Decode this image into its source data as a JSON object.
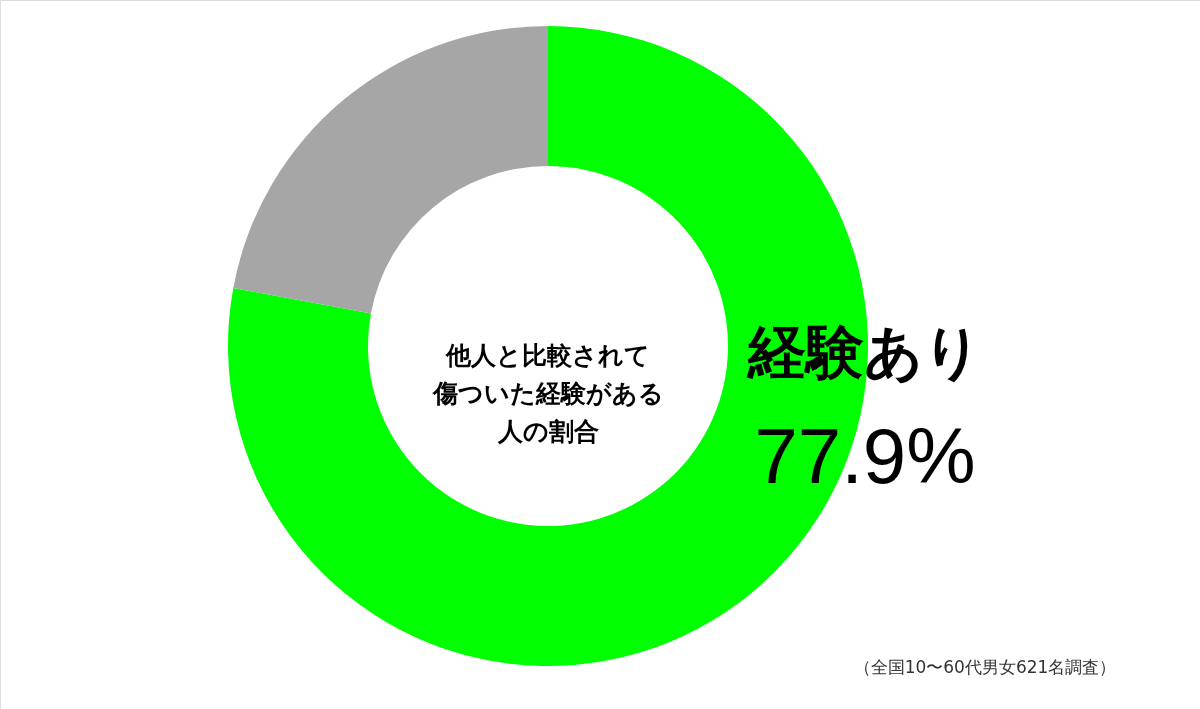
{
  "chart_data": {
    "type": "donut",
    "title": "他人と比較されて傷ついた経験がある人の割合",
    "categories": [
      "経験あり",
      null
    ],
    "values": [
      77.9,
      22.1
    ],
    "colors": [
      "#00ff00",
      "#a6a6a6"
    ],
    "value_labels": [
      "77.9%",
      null
    ],
    "annotations": [
      "（全国10〜60代男女621名調査）"
    ]
  }
}
